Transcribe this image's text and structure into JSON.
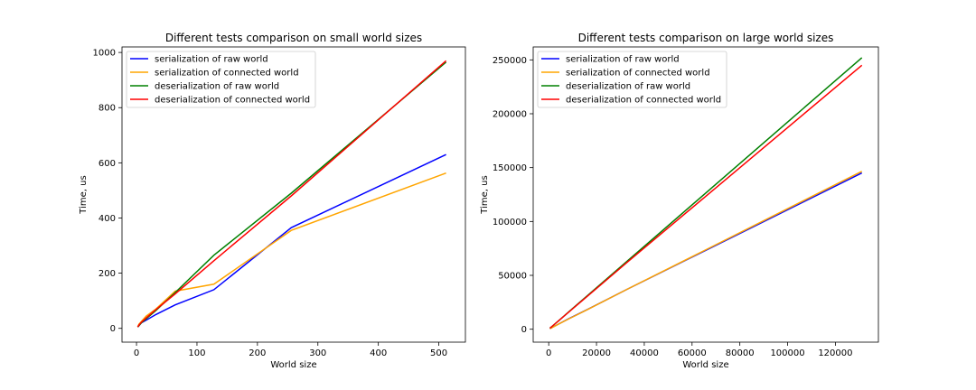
{
  "chart_data": [
    {
      "type": "line",
      "title": "Different tests comparison on small world sizes",
      "xlabel": "World size",
      "ylabel": "Time, us",
      "xlim": [
        -24,
        544
      ],
      "ylim": [
        -50,
        1020
      ],
      "xticks": [
        0,
        100,
        200,
        300,
        400,
        500
      ],
      "yticks": [
        0,
        200,
        400,
        600,
        800,
        1000
      ],
      "legend_position": "upper-left",
      "series": [
        {
          "name": "serialization of raw world",
          "color": "#0000ff",
          "x": [
            2,
            4,
            8,
            16,
            32,
            64,
            128,
            256,
            512
          ],
          "y": [
            5,
            10,
            20,
            30,
            50,
            85,
            140,
            365,
            630
          ]
        },
        {
          "name": "serialization of connected world",
          "color": "#ffa500",
          "x": [
            2,
            4,
            8,
            16,
            32,
            64,
            128,
            256,
            512
          ],
          "y": [
            5,
            15,
            25,
            45,
            70,
            135,
            160,
            355,
            563
          ]
        },
        {
          "name": "deserialization of raw world",
          "color": "#008000",
          "x": [
            2,
            4,
            8,
            16,
            32,
            64,
            128,
            256,
            512
          ],
          "y": [
            5,
            10,
            20,
            35,
            65,
            130,
            265,
            490,
            965
          ]
        },
        {
          "name": "deserialization of connected world",
          "color": "#ff0000",
          "x": [
            2,
            4,
            8,
            16,
            32,
            64,
            128,
            256,
            512
          ],
          "y": [
            5,
            12,
            22,
            38,
            68,
            125,
            245,
            480,
            970
          ]
        }
      ]
    },
    {
      "type": "line",
      "title": "Different tests comparison on large world sizes",
      "xlabel": "World size",
      "ylabel": "Time, us",
      "xlim": [
        -6500,
        138000
      ],
      "ylim": [
        -12000,
        262000
      ],
      "xticks": [
        0,
        20000,
        40000,
        60000,
        80000,
        100000,
        120000
      ],
      "yticks": [
        0,
        50000,
        100000,
        150000,
        200000,
        250000
      ],
      "legend_position": "upper-left",
      "series": [
        {
          "name": "serialization of raw world",
          "color": "#0000ff",
          "x": [
            512,
            1024,
            2048,
            4096,
            8192,
            16384,
            32768,
            65536,
            131072
          ],
          "y": [
            630,
            1200,
            2400,
            4800,
            9500,
            18500,
            37000,
            73000,
            145000
          ]
        },
        {
          "name": "serialization of connected world",
          "color": "#ffa500",
          "x": [
            512,
            1024,
            2048,
            4096,
            8192,
            16384,
            32768,
            65536,
            131072
          ],
          "y": [
            563,
            1100,
            2300,
            4700,
            9400,
            18400,
            37000,
            73500,
            146500
          ]
        },
        {
          "name": "deserialization of raw world",
          "color": "#008000",
          "x": [
            512,
            1024,
            2048,
            4096,
            8192,
            16384,
            32768,
            65536,
            131072
          ],
          "y": [
            965,
            1900,
            3900,
            7800,
            15700,
            31500,
            63000,
            126000,
            252000
          ]
        },
        {
          "name": "deserialization of connected world",
          "color": "#ff0000",
          "x": [
            512,
            1024,
            2048,
            4096,
            8192,
            16384,
            32768,
            65536,
            131072
          ],
          "y": [
            970,
            1900,
            3900,
            7800,
            15500,
            31000,
            62000,
            123000,
            245000
          ]
        }
      ]
    }
  ]
}
